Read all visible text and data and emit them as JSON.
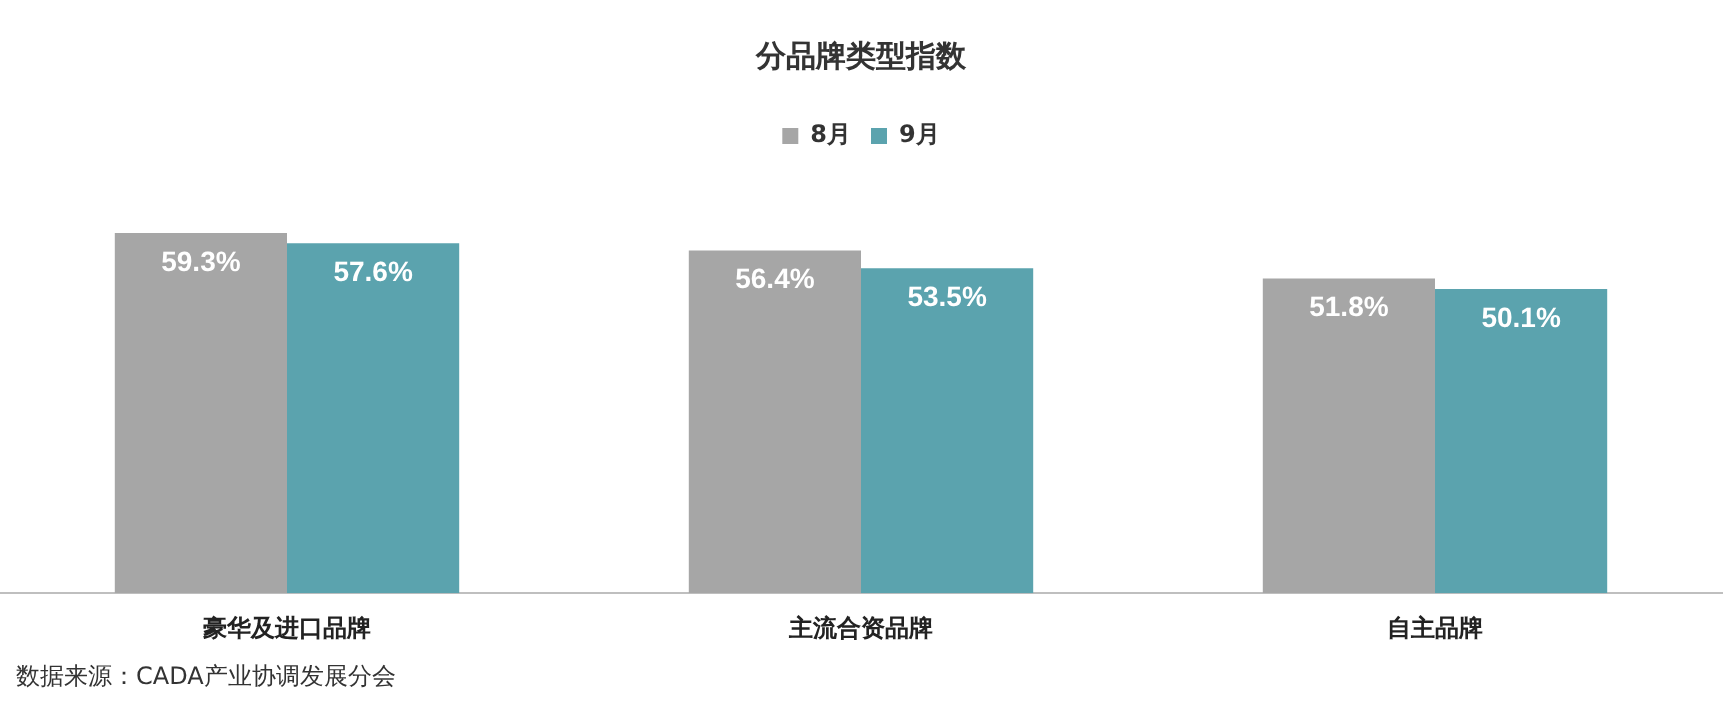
{
  "chart_data": {
    "type": "bar",
    "title": "分品牌类型指数",
    "categories": [
      "豪华及进口品牌",
      "主流合资品牌",
      "自主品牌"
    ],
    "series": [
      {
        "name": "8月",
        "color": "#a6a6a6",
        "values": [
          59.3,
          56.4,
          51.8
        ],
        "value_labels": [
          "59.3%",
          "56.4%",
          "51.8%"
        ]
      },
      {
        "name": "9月",
        "color": "#5ba3ae",
        "values": [
          57.6,
          53.5,
          50.1
        ],
        "value_labels": [
          "57.6%",
          "53.5%",
          "50.1%"
        ]
      }
    ],
    "tick_labels": "x",
    "grid": false,
    "legend": "top",
    "annotations": [
      "数据来源：CADA产业协调发展分会"
    ]
  }
}
